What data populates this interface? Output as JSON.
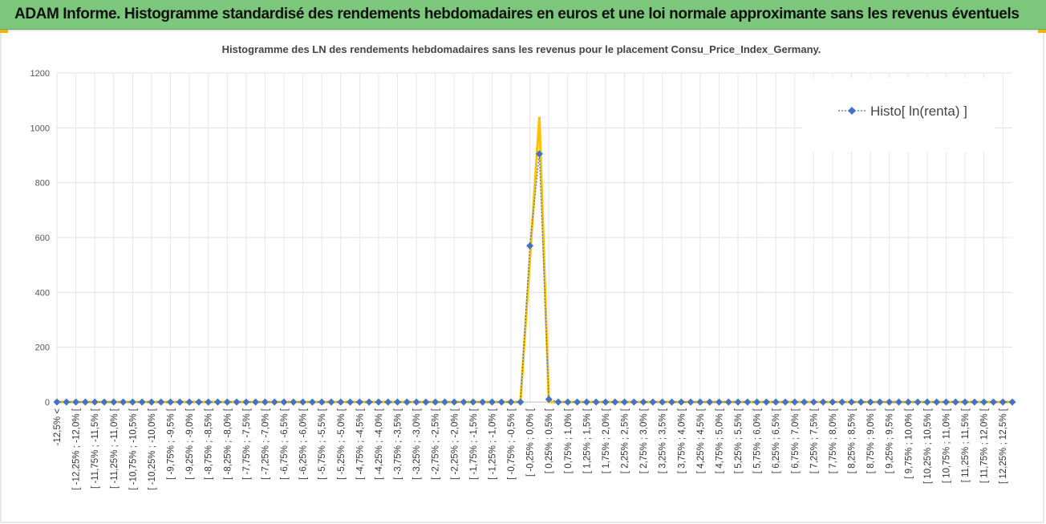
{
  "chart_data": {
    "type": "line",
    "banner": "ADAM Informe. Histogramme standardisé des rendements hebdomadaires en euros et une loi normale approximante sans les revenus éventuels",
    "title": "Histogramme  des LN des rendements hebdomadaires sans les revenus pour le placement Consu_Price_Index_Germany.",
    "categories": [
      "-12,5% <",
      null,
      "[ -12,25% ; -12,0% [",
      null,
      "[ -11,75% ; -11,5% [",
      null,
      "[ -11,25% ; -11,0% [",
      null,
      "[ -10,75% ; -10,5% [",
      null,
      "[ -10,25% ; -10,0% [",
      null,
      "[ -9,75% ; -9,5% [",
      null,
      "[ -9,25% ; -9,0% [",
      null,
      "[ -8,75% ; -8,5% [",
      null,
      "[ -8,25% ; -8,0% [",
      null,
      "[ -7,75% ; -7,5% [",
      null,
      "[ -7,25% ; -7,0% [",
      null,
      "[ -6,75% ; -6,5% [",
      null,
      "[ -6,25% ; -6,0% [",
      null,
      "[ -5,75% ; -5,5% [",
      null,
      "[ -5,25% ; -5,0% [",
      null,
      "[ -4,75% ; -4,5% [",
      null,
      "[ -4,25% ; -4,0% [",
      null,
      "[ -3,75% ; -3,5% [",
      null,
      "[ -3,25% ; -3,0% [",
      null,
      "[ -2,75% ; -2,5% [",
      null,
      "[ -2,25% ; -2,0% [",
      null,
      "[ -1,75% ; -1,5% [",
      null,
      "[ -1,25% ; -1,0% [",
      null,
      "[ -0,75% ; -0,5% [",
      null,
      "[ -0,25% ; 0,0% [",
      null,
      "[ 0,25% ; 0,5% [",
      null,
      "[ 0,75% ; 1,0% [",
      null,
      "[ 1,25% ; 1,5% [",
      null,
      "[ 1,75% ; 2,0% [",
      null,
      "[ 2,25% ; 2,5% [",
      null,
      "[ 2,75% ; 3,0% [",
      null,
      "[ 3,25% ; 3,5% [",
      null,
      "[ 3,75% ; 4,0% [",
      null,
      "[ 4,25% ; 4,5% [",
      null,
      "[ 4,75% ; 5,0% [",
      null,
      "[ 5,25% ; 5,5% [",
      null,
      "[ 5,75% ; 6,0% [",
      null,
      "[ 6,25% ; 6,5% [",
      null,
      "[ 6,75% ; 7,0% [",
      null,
      "[ 7,25% ; 7,5% [",
      null,
      "[ 7,75% ; 8,0% [",
      null,
      "[ 8,25% ; 8,5% [",
      null,
      "[ 8,75% ; 9,0% [",
      null,
      "[ 9,25% ; 9,5% [",
      null,
      "[ 9,75% ; 10,0% [",
      null,
      "[ 10,25% ; 10,5% [",
      null,
      "[ 10,75% ; 11,0% [",
      null,
      "[ 11,25% ; 11,5% [",
      null,
      "[ 11,75% ; 12,0% [",
      null,
      "[ 12,25% ; 12,5% [",
      null
    ],
    "series": [
      {
        "color": "#ffc000",
        "values": [
          0,
          0,
          0,
          0,
          0,
          0,
          0,
          0,
          0,
          0,
          0,
          0,
          0,
          0,
          0,
          0,
          0,
          0,
          0,
          0,
          0,
          0,
          0,
          0,
          0,
          0,
          0,
          0,
          0,
          0,
          0,
          0,
          0,
          0,
          0,
          0,
          0,
          0,
          0,
          0,
          0,
          0,
          0,
          0,
          0,
          0,
          0,
          0,
          0,
          0,
          520,
          1040,
          0,
          0,
          0,
          0,
          0,
          0,
          0,
          0,
          0,
          0,
          0,
          0,
          0,
          0,
          0,
          0,
          0,
          0,
          0,
          0,
          0,
          0,
          0,
          0,
          0,
          0,
          0,
          0,
          0,
          0,
          0,
          0,
          0,
          0,
          0,
          0,
          0,
          0,
          0,
          0,
          0,
          0,
          0,
          0,
          0,
          0,
          0,
          0,
          0,
          0
        ]
      },
      {
        "name": "Histo[ ln(renta) ]",
        "color": "#4472c4",
        "values": [
          0,
          0,
          0,
          0,
          0,
          0,
          0,
          0,
          0,
          0,
          0,
          0,
          0,
          0,
          0,
          0,
          0,
          0,
          0,
          0,
          0,
          0,
          0,
          0,
          0,
          0,
          0,
          0,
          0,
          0,
          0,
          0,
          0,
          0,
          0,
          0,
          0,
          0,
          0,
          0,
          0,
          0,
          0,
          0,
          0,
          0,
          0,
          0,
          0,
          0,
          570,
          905,
          10,
          0,
          0,
          0,
          0,
          0,
          0,
          0,
          0,
          0,
          0,
          0,
          0,
          0,
          0,
          0,
          0,
          0,
          0,
          0,
          0,
          0,
          0,
          0,
          0,
          0,
          0,
          0,
          0,
          0,
          0,
          0,
          0,
          0,
          0,
          0,
          0,
          0,
          0,
          0,
          0,
          0,
          0,
          0,
          0,
          0,
          0,
          0,
          0,
          0
        ]
      }
    ],
    "ylim": [
      0,
      1200
    ],
    "yticks": [
      0,
      200,
      400,
      600,
      800,
      1000,
      1200
    ],
    "grid": true,
    "legend": "top-right"
  }
}
